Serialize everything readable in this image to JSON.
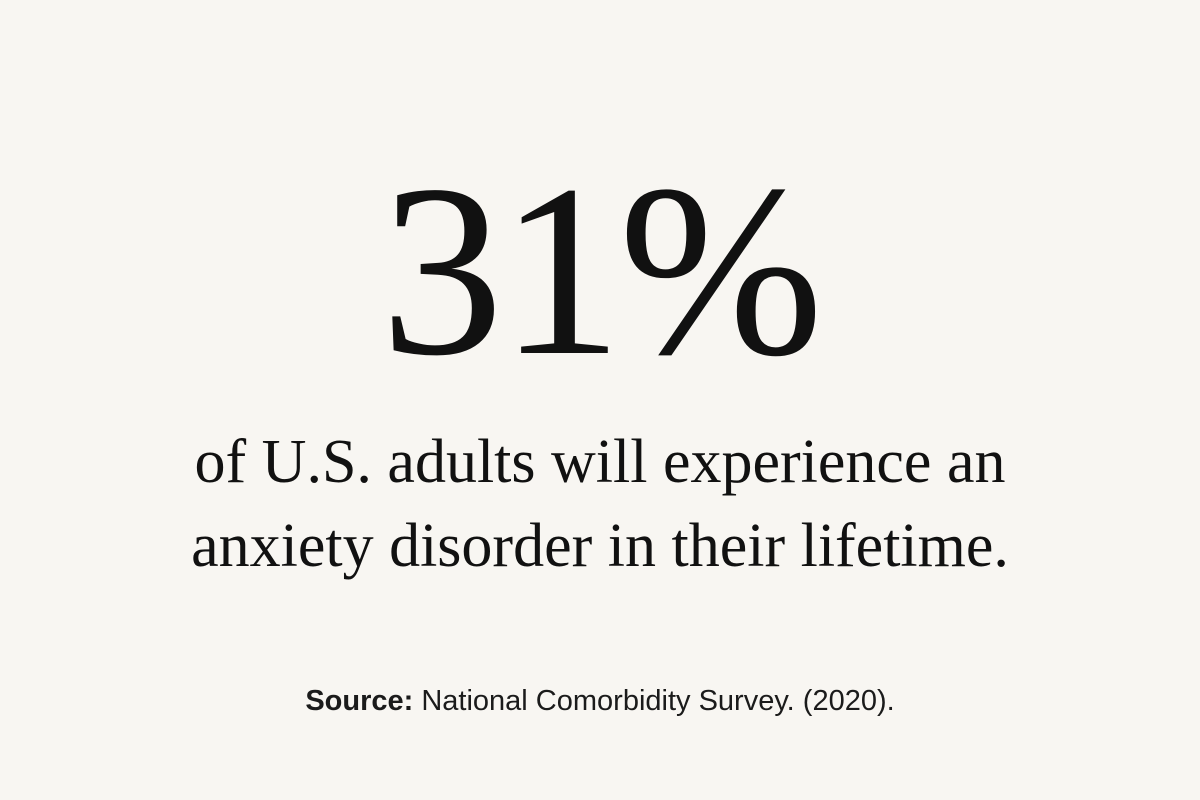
{
  "stat": {
    "value": "31%",
    "line1": "of U.S. adults will experience an",
    "line2": "anxiety disorder in their lifetime."
  },
  "source": {
    "label": "Source:",
    "text": " National Comorbidity Survey. (2020)."
  },
  "colors": {
    "background": "#f8f6f2",
    "text": "#111111"
  }
}
